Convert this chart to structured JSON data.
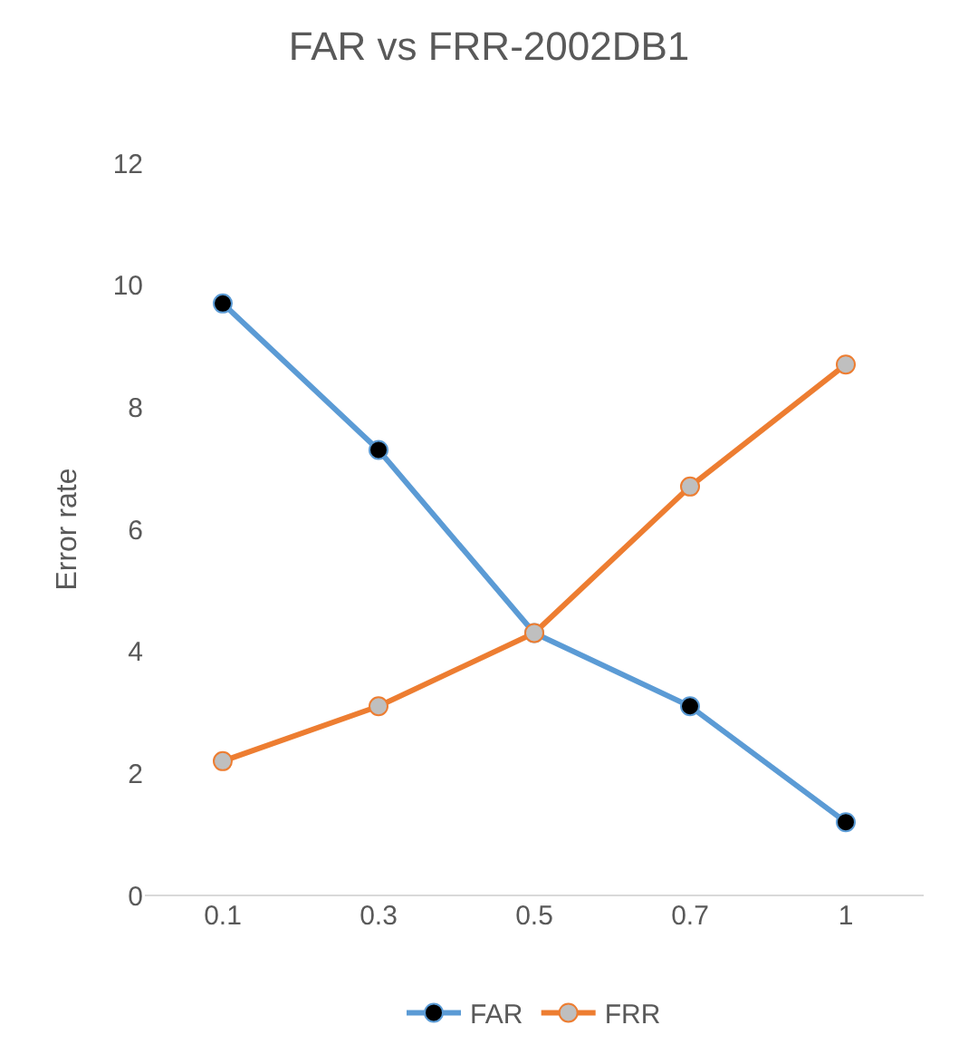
{
  "chart_data": {
    "type": "line",
    "title": "FAR vs FRR-2002DB1",
    "ylabel": "Error rate",
    "categories": [
      "0.1",
      "0.3",
      "0.5",
      "0.7",
      "1"
    ],
    "series": [
      {
        "name": "FAR",
        "color": "#5b9bd5",
        "values": [
          9.7,
          7.3,
          4.3,
          3.1,
          1.2
        ]
      },
      {
        "name": "FRR",
        "color": "#ed7d31",
        "values": [
          2.2,
          3.1,
          4.3,
          6.7,
          8.7
        ]
      }
    ],
    "ylim": [
      0,
      12
    ],
    "yticks": [
      0,
      2,
      4,
      6,
      8,
      10,
      12
    ],
    "grid": false,
    "legend": "bottom",
    "marker": "circle",
    "line_style": "solid"
  }
}
